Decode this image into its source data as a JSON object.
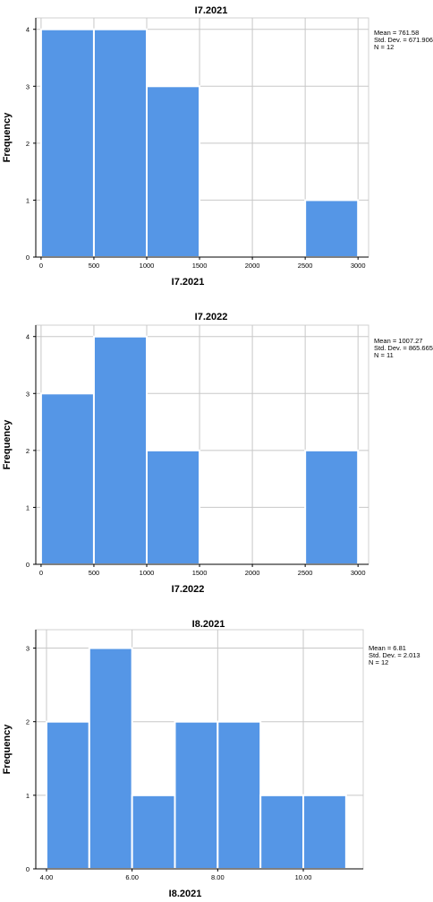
{
  "colors": {
    "bar": "#5596e6",
    "bar_edge": "#ffffff",
    "grid": "#c8c8c8",
    "axis": "#000000",
    "frame": "#d0d0d0"
  },
  "chart_data": [
    {
      "type": "bar",
      "title": "I7.2021",
      "xlabel": "I7.2021",
      "ylabel": "Frequency",
      "bins": [
        [
          0,
          500
        ],
        [
          500,
          1000
        ],
        [
          1000,
          1500
        ],
        [
          1500,
          2000
        ],
        [
          2000,
          2500
        ],
        [
          2500,
          3000
        ]
      ],
      "values": [
        4,
        4,
        3,
        0,
        0,
        1
      ],
      "xlim": [
        -50,
        3100
      ],
      "ylim": [
        0,
        4.2
      ],
      "xticks": [
        0,
        500,
        1000,
        1500,
        2000,
        2500,
        3000
      ],
      "xtick_labels": [
        "0",
        "500",
        "1000",
        "1500",
        "2000",
        "2500",
        "3000"
      ],
      "yticks": [
        0,
        1,
        2,
        3,
        4
      ],
      "ytick_labels": [
        "0",
        "1",
        "2",
        "3",
        "4"
      ],
      "grid": true,
      "stats": [
        "Mean = 761.58",
        "Std. Dev. = 671.906",
        "N = 12"
      ]
    },
    {
      "type": "bar",
      "title": "I7.2022",
      "xlabel": "I7.2022",
      "ylabel": "Frequency",
      "bins": [
        [
          0,
          500
        ],
        [
          500,
          1000
        ],
        [
          1000,
          1500
        ],
        [
          1500,
          2000
        ],
        [
          2000,
          2500
        ],
        [
          2500,
          3000
        ]
      ],
      "values": [
        3,
        4,
        2,
        0,
        0,
        2
      ],
      "xlim": [
        -50,
        3100
      ],
      "ylim": [
        0,
        4.2
      ],
      "xticks": [
        0,
        500,
        1000,
        1500,
        2000,
        2500,
        3000
      ],
      "xtick_labels": [
        "0",
        "500",
        "1000",
        "1500",
        "2000",
        "2500",
        "3000"
      ],
      "yticks": [
        0,
        1,
        2,
        3,
        4
      ],
      "ytick_labels": [
        "0",
        "1",
        "2",
        "3",
        "4"
      ],
      "grid": true,
      "stats": [
        "Mean = 1007.27",
        "Std. Dev. = 865.665",
        "N = 11"
      ]
    },
    {
      "type": "bar",
      "title": "I8.2021",
      "xlabel": "I8.2021",
      "ylabel": "Frequency",
      "bins": [
        [
          4,
          5
        ],
        [
          5,
          6
        ],
        [
          6,
          7
        ],
        [
          7,
          8
        ],
        [
          8,
          9
        ],
        [
          9,
          10
        ],
        [
          10,
          11
        ]
      ],
      "values": [
        2,
        3,
        1,
        2,
        2,
        1,
        1
      ],
      "xlim": [
        3.75,
        11.4
      ],
      "ylim": [
        0,
        3.25
      ],
      "xticks": [
        4,
        6,
        8,
        10
      ],
      "xtick_labels": [
        "4.00",
        "6.00",
        "8.00",
        "10.00"
      ],
      "yticks": [
        0,
        1,
        2,
        3
      ],
      "ytick_labels": [
        "0",
        "1",
        "2",
        "3"
      ],
      "grid": true,
      "stats": [
        "Mean = 6.81",
        "Std. Dev. = 2.013",
        "N = 12"
      ]
    }
  ]
}
